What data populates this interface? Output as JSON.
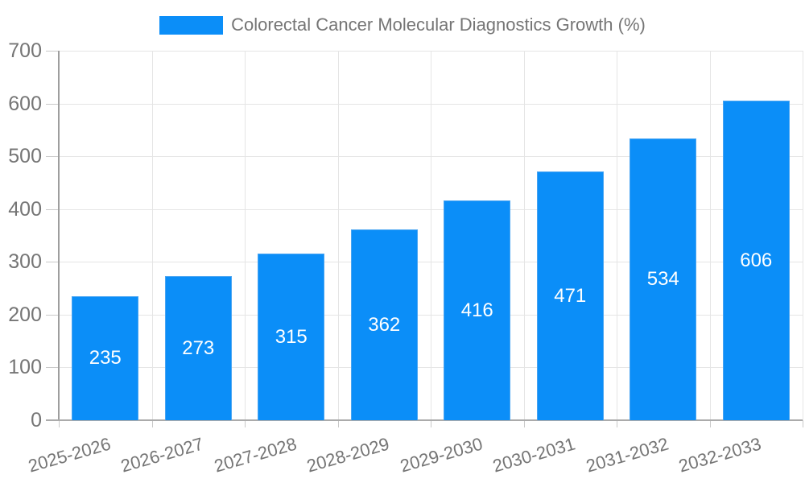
{
  "chart_data": {
    "type": "bar",
    "title": "Colorectal Cancer Molecular Diagnostics Growth (%)",
    "legend_position": "top",
    "categories": [
      "2025-2026",
      "2026-2027",
      "2027-2028",
      "2028-2029",
      "2029-2030",
      "2030-2031",
      "2031-2032",
      "2032-2033"
    ],
    "values": [
      235,
      273,
      315,
      362,
      416,
      471,
      534,
      606
    ],
    "xlabel": "",
    "ylabel": "",
    "ylim": [
      0,
      700
    ],
    "yticks": [
      0,
      100,
      200,
      300,
      400,
      500,
      600,
      700
    ],
    "grid": true,
    "colors": {
      "bar": "#0b8ef8",
      "bar_border": "#4aa5f2",
      "value_label": "#ffffff",
      "axis_text": "#757575",
      "grid_line": "#e5e5e5",
      "axis_line": "#a3a3a3",
      "tick_line": "#c9c9c9",
      "background": "#ffffff"
    }
  }
}
